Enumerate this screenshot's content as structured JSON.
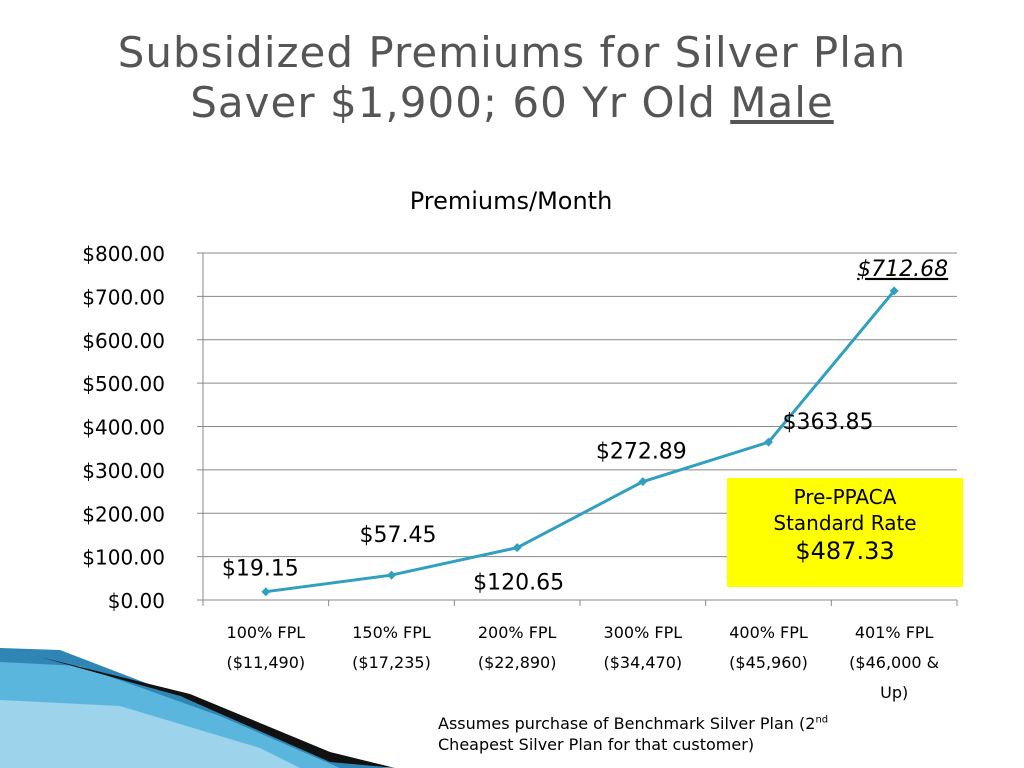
{
  "slide": {
    "title_line1": "Subsidized Premiums for Silver Plan",
    "title_line2_prefix": "Saver $1,900; 60 Yr Old ",
    "title_line2_underlined": "Male",
    "callout": {
      "line1": "Pre-PPACA",
      "line2": "Standard Rate",
      "line3": "$487.33",
      "color": "#ffff00"
    },
    "footnote": {
      "part1": "Assumes purchase of Benchmark Silver Plan (2",
      "sup": "nd",
      "part2": "Cheapest Silver Plan for that customer)"
    },
    "colors": {
      "title": "#555555",
      "series": "#31a0c0",
      "grid": "#888888"
    }
  },
  "chart_data": {
    "type": "line",
    "title": "Premiums/Month",
    "xlabel": "",
    "ylabel": "",
    "categories": [
      [
        "100% FPL",
        "($11,490)"
      ],
      [
        "150% FPL",
        "($17,235)"
      ],
      [
        "200% FPL",
        "($22,890)"
      ],
      [
        "300% FPL",
        "($34,470)"
      ],
      [
        "400% FPL",
        "($45,960)"
      ],
      [
        "401% FPL",
        "($46,000 &",
        "Up)"
      ]
    ],
    "series": [
      {
        "values": [
          19.15,
          57.45,
          120.65,
          272.89,
          363.85,
          712.68
        ]
      }
    ],
    "data_labels": [
      "$19.15",
      "$57.45",
      "$120.65",
      "$272.89",
      "$363.85",
      "$712.68"
    ],
    "ylim": [
      0,
      800
    ],
    "yticks": [
      0,
      100,
      200,
      300,
      400,
      500,
      600,
      700,
      800
    ],
    "ytick_labels": [
      "$0.00",
      "$100.00",
      "$200.00",
      "$300.00",
      "$400.00",
      "$500.00",
      "$600.00",
      "$700.00",
      "$800.00"
    ],
    "grid": true,
    "legend": "none"
  }
}
